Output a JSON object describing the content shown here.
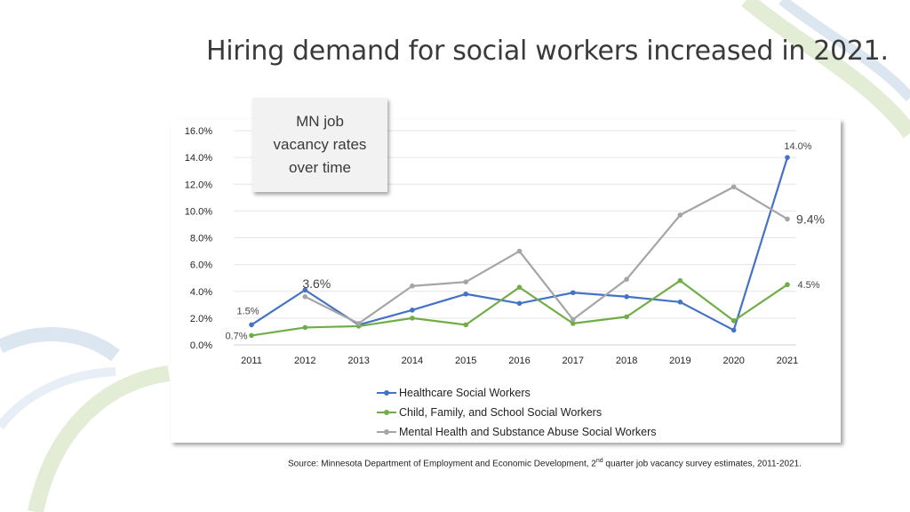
{
  "title": "Hiring demand for social workers increased in 2021.",
  "callout": "MN job vacancy rates over time",
  "source": {
    "prefix": "Source: Minnesota Department of Employment and Economic Development, 2",
    "superscript": "nd",
    "suffix": " quarter job vacancy survey estimates, 2011-2021."
  },
  "colors": {
    "healthcare": "#4472c4",
    "child": "#70ad47",
    "mental": "#a5a5a5"
  },
  "chart_data": {
    "type": "line",
    "x": [
      "2011",
      "2012",
      "2013",
      "2014",
      "2015",
      "2016",
      "2017",
      "2018",
      "2019",
      "2020",
      "2021"
    ],
    "ylim": [
      0,
      16
    ],
    "yticks": [
      "0.0%",
      "2.0%",
      "4.0%",
      "6.0%",
      "8.0%",
      "10.0%",
      "12.0%",
      "14.0%",
      "16.0%"
    ],
    "ytick_values": [
      0,
      2,
      4,
      6,
      8,
      10,
      12,
      14,
      16
    ],
    "grid": true,
    "legend_position": "bottom",
    "series": [
      {
        "name": "Healthcare Social Workers",
        "color_key": "healthcare",
        "values": [
          1.5,
          4.1,
          1.5,
          2.6,
          3.8,
          3.1,
          3.9,
          3.6,
          3.2,
          1.1,
          14.0
        ]
      },
      {
        "name": "Child, Family, and School Social Workers",
        "color_key": "child",
        "values": [
          0.7,
          1.3,
          1.4,
          2.0,
          1.5,
          4.3,
          1.6,
          2.1,
          4.8,
          1.8,
          4.5
        ]
      },
      {
        "name": "Mental Health and Substance Abuse Social Workers",
        "color_key": "mental",
        "values": [
          null,
          3.6,
          1.6,
          4.4,
          4.7,
          7.0,
          1.9,
          4.9,
          9.7,
          11.8,
          9.4
        ]
      }
    ],
    "annotations": [
      {
        "text": "1.5%",
        "series": 0,
        "index": 0,
        "size": "small"
      },
      {
        "text": "0.7%",
        "series": 1,
        "index": 0,
        "size": "small"
      },
      {
        "text": "3.6%",
        "series": 2,
        "index": 1,
        "size": "large"
      },
      {
        "text": "14.0%",
        "series": 0,
        "index": 10,
        "size": "small"
      },
      {
        "text": "9.4%",
        "series": 2,
        "index": 10,
        "size": "large"
      },
      {
        "text": "4.5%",
        "series": 1,
        "index": 10,
        "size": "small"
      }
    ]
  }
}
